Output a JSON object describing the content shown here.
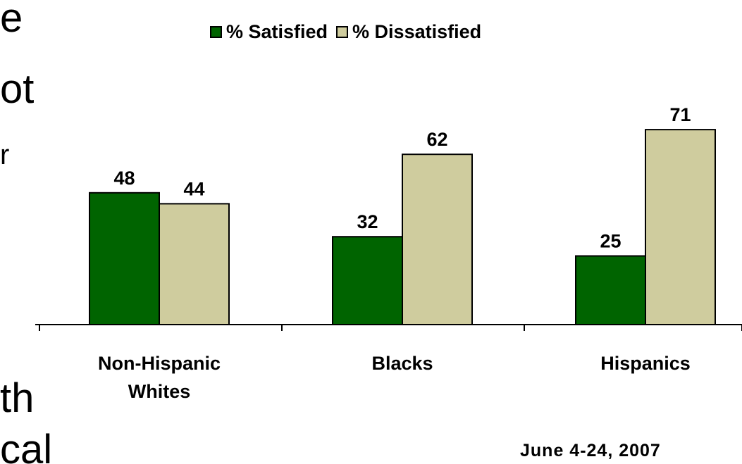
{
  "background_text": {
    "line_1": "e",
    "line_2": "ot",
    "line_3": "r",
    "line_4": "th",
    "line_5": "cal"
  },
  "date_note": "June 4-24, 2007",
  "colors": {
    "satisfied": "#006400",
    "dissatisfied": "#CFCC9E",
    "outline": "#000000"
  },
  "chart_data": {
    "type": "bar",
    "categories": [
      [
        "Non-Hispanic",
        "Whites"
      ],
      [
        "Blacks"
      ],
      [
        "Hispanics"
      ]
    ],
    "series": [
      {
        "name": "% Satisfied",
        "values": [
          48,
          32,
          25
        ]
      },
      {
        "name": "% Dissatisfied",
        "values": [
          44,
          62,
          71
        ]
      }
    ],
    "title": "",
    "xlabel": "",
    "ylabel": "",
    "ylim": [
      0,
      100
    ],
    "grid": false,
    "legend_position": "top-center",
    "data_labels": true
  }
}
